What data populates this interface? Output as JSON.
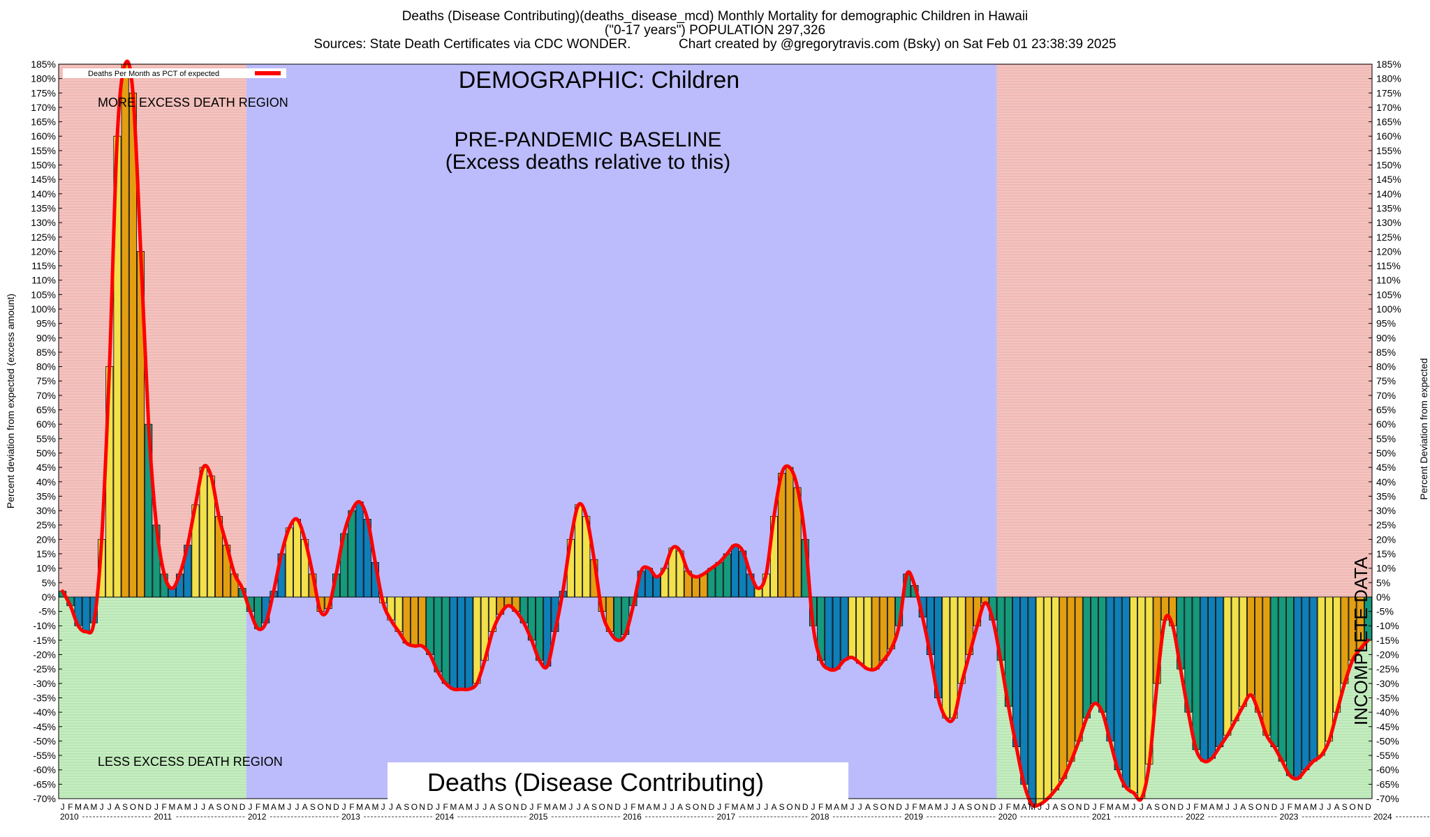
{
  "title": {
    "line1": "Deaths (Disease Contributing)(deaths_disease_mcd) Monthly Mortality for demographic Children in Hawaii",
    "line2": "(\"0-17 years\") POPULATION 297,326",
    "line3": "Sources: State Death Certificates via CDC WONDER.             Chart created by @gregorytravis.com (Bsky) on Sat Feb 01 23:38:39 2025"
  },
  "legend_label": "Deaths Per Month as PCT of expected",
  "annotations": {
    "demographic": "DEMOGRAPHIC: Children",
    "baseline_line1": "PRE-PANDEMIC BASELINE",
    "baseline_line2": "(Excess deaths relative to this)",
    "more_excess": "MORE EXCESS DEATH REGION",
    "less_excess": "LESS EXCESS DEATH REGION",
    "incomplete": "INCOMPLETE DATA",
    "bottom_title": "Deaths (Disease Contributing)"
  },
  "colors": {
    "more_region": "#f4c4c0",
    "less_region": "#c6edc2",
    "baseline_region": "#bcbcfc",
    "line": "#ff0000",
    "bar_palette": [
      "#f2e14a",
      "#e39f12",
      "#0f7fb8",
      "#159a7c"
    ]
  },
  "chart_data": {
    "type": "bar",
    "ylabel": "Percent deviation from expected (excess amount)",
    "ylabel_right": "Percent Deviation from expected",
    "ylim": [
      -70,
      185
    ],
    "ytick_step": 5,
    "start_year": 2010,
    "month_letters": [
      "J",
      "F",
      "M",
      "A",
      "M",
      "J",
      "J",
      "A",
      "S",
      "O",
      "N",
      "D"
    ],
    "year_labels": [
      "2010",
      "2011",
      "2012",
      "2013",
      "2014",
      "2015",
      "2016",
      "2017",
      "2018",
      "2019",
      "2020",
      "2021",
      "2022",
      "2023",
      "2024"
    ],
    "baseline_years": [
      "2012",
      "2019"
    ],
    "incomplete_from": "2024-02",
    "series": [
      {
        "name": "Deaths Per Month as PCT of expected",
        "values": [
          2,
          -3,
          -10,
          -12,
          -9,
          20,
          80,
          160,
          185,
          175,
          120,
          60,
          25,
          8,
          3,
          8,
          18,
          32,
          45,
          42,
          28,
          18,
          8,
          3,
          -5,
          -11,
          -9,
          2,
          15,
          24,
          27,
          20,
          8,
          -5,
          -4,
          8,
          22,
          30,
          33,
          27,
          12,
          -2,
          -8,
          -12,
          -16,
          -17,
          -17,
          -20,
          -26,
          -30,
          -32,
          -32,
          -32,
          -30,
          -22,
          -12,
          -6,
          -3,
          -5,
          -9,
          -15,
          -22,
          -24,
          -12,
          2,
          20,
          32,
          28,
          13,
          -5,
          -12,
          -15,
          -13,
          -3,
          9,
          10,
          7,
          10,
          17,
          16,
          9,
          7,
          8,
          10,
          12,
          15,
          18,
          16,
          8,
          3,
          8,
          28,
          43,
          45,
          38,
          20,
          -10,
          -22,
          -25,
          -25,
          -22,
          -21,
          -23,
          -25,
          -25,
          -22,
          -18,
          -10,
          8,
          4,
          -7,
          -20,
          -35,
          -42,
          -42,
          -30,
          -20,
          -10,
          -2,
          -8,
          -22,
          -38,
          -52,
          -65,
          -72,
          -72,
          -70,
          -67,
          -63,
          -57,
          -50,
          -42,
          -37,
          -40,
          -50,
          -60,
          -66,
          -68,
          -70,
          -58,
          -30,
          -8,
          -10,
          -25,
          -40,
          -53,
          -57,
          -56,
          -52,
          -48,
          -43,
          -38,
          -34,
          -40,
          -48,
          -52,
          -57,
          -62,
          -63,
          -60,
          -57,
          -55,
          -50,
          -40,
          -30,
          -22,
          -18,
          -15
        ]
      }
    ]
  }
}
